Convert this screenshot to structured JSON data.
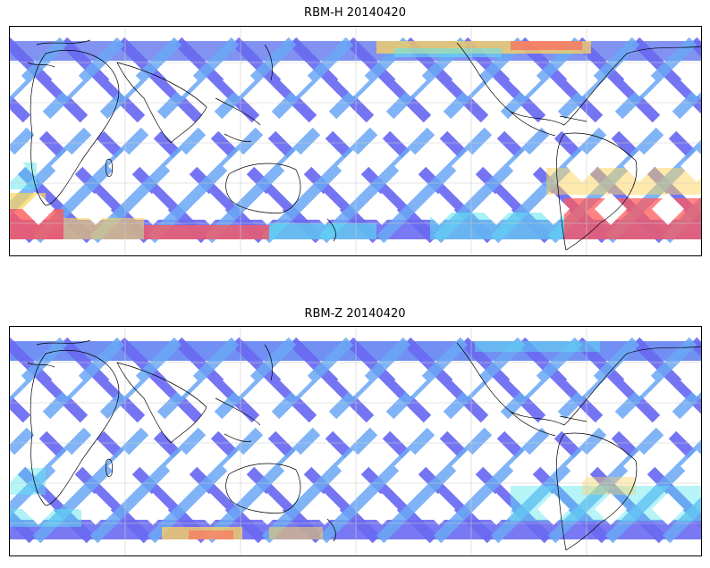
{
  "panels": [
    {
      "title": "RBM-H 20140420",
      "band_color_north": "#7a8cf0",
      "band_color_mid": "#6a6af2",
      "hot_color": "#ff5a5a",
      "warm_color": "#ffd35a",
      "cool_color": "#5ee6f0"
    },
    {
      "title": "RBM-Z 20140420",
      "band_color_north": "#6a8af2",
      "band_color_mid": "#6a6af2",
      "hot_color": "#ff6a5a",
      "warm_color": "#ffd35a",
      "cool_color": "#5ee6f0"
    }
  ],
  "colors": {
    "track_main": "#6a6af2",
    "track_light": "#6aa8f5",
    "coast": "#000000",
    "grid": "#cccccc"
  }
}
